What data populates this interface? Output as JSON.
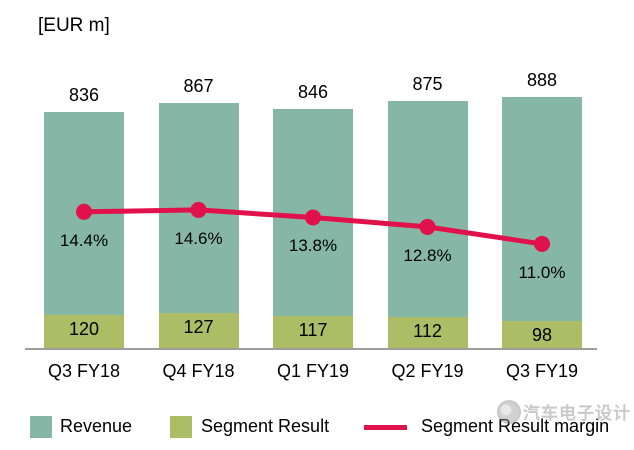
{
  "title": "[EUR m]",
  "chart_data": {
    "type": "bar",
    "title": "[EUR m]",
    "categories": [
      "Q3 FY18",
      "Q4 FY18",
      "Q1 FY19",
      "Q2 FY19",
      "Q3 FY19"
    ],
    "series": [
      {
        "name": "Revenue",
        "type": "bar",
        "values": [
          836,
          867,
          846,
          875,
          888
        ],
        "color": "#85B6A6"
      },
      {
        "name": "Segment Result",
        "type": "bar",
        "values": [
          120,
          127,
          117,
          112,
          98
        ],
        "color": "#ADBD65"
      },
      {
        "name": "Segment Result margin",
        "type": "line",
        "values": [
          14.4,
          14.6,
          13.8,
          12.8,
          11.0
        ],
        "labels": [
          "14.4%",
          "14.6%",
          "13.8%",
          "12.8%",
          "11.0%"
        ],
        "color": "#E0114B"
      }
    ],
    "xlabel": "",
    "ylabel": "[EUR m]",
    "ylim": [
      0,
      900
    ],
    "grid": false,
    "legend_position": "bottom",
    "axis_color": "#9e9e9e"
  },
  "legend": {
    "revenue_label": "Revenue",
    "segment_result_label": "Segment Result",
    "margin_label": "Segment Result margin"
  },
  "watermark": {
    "text": "汽车电子设计",
    "icon": "round-logo"
  }
}
